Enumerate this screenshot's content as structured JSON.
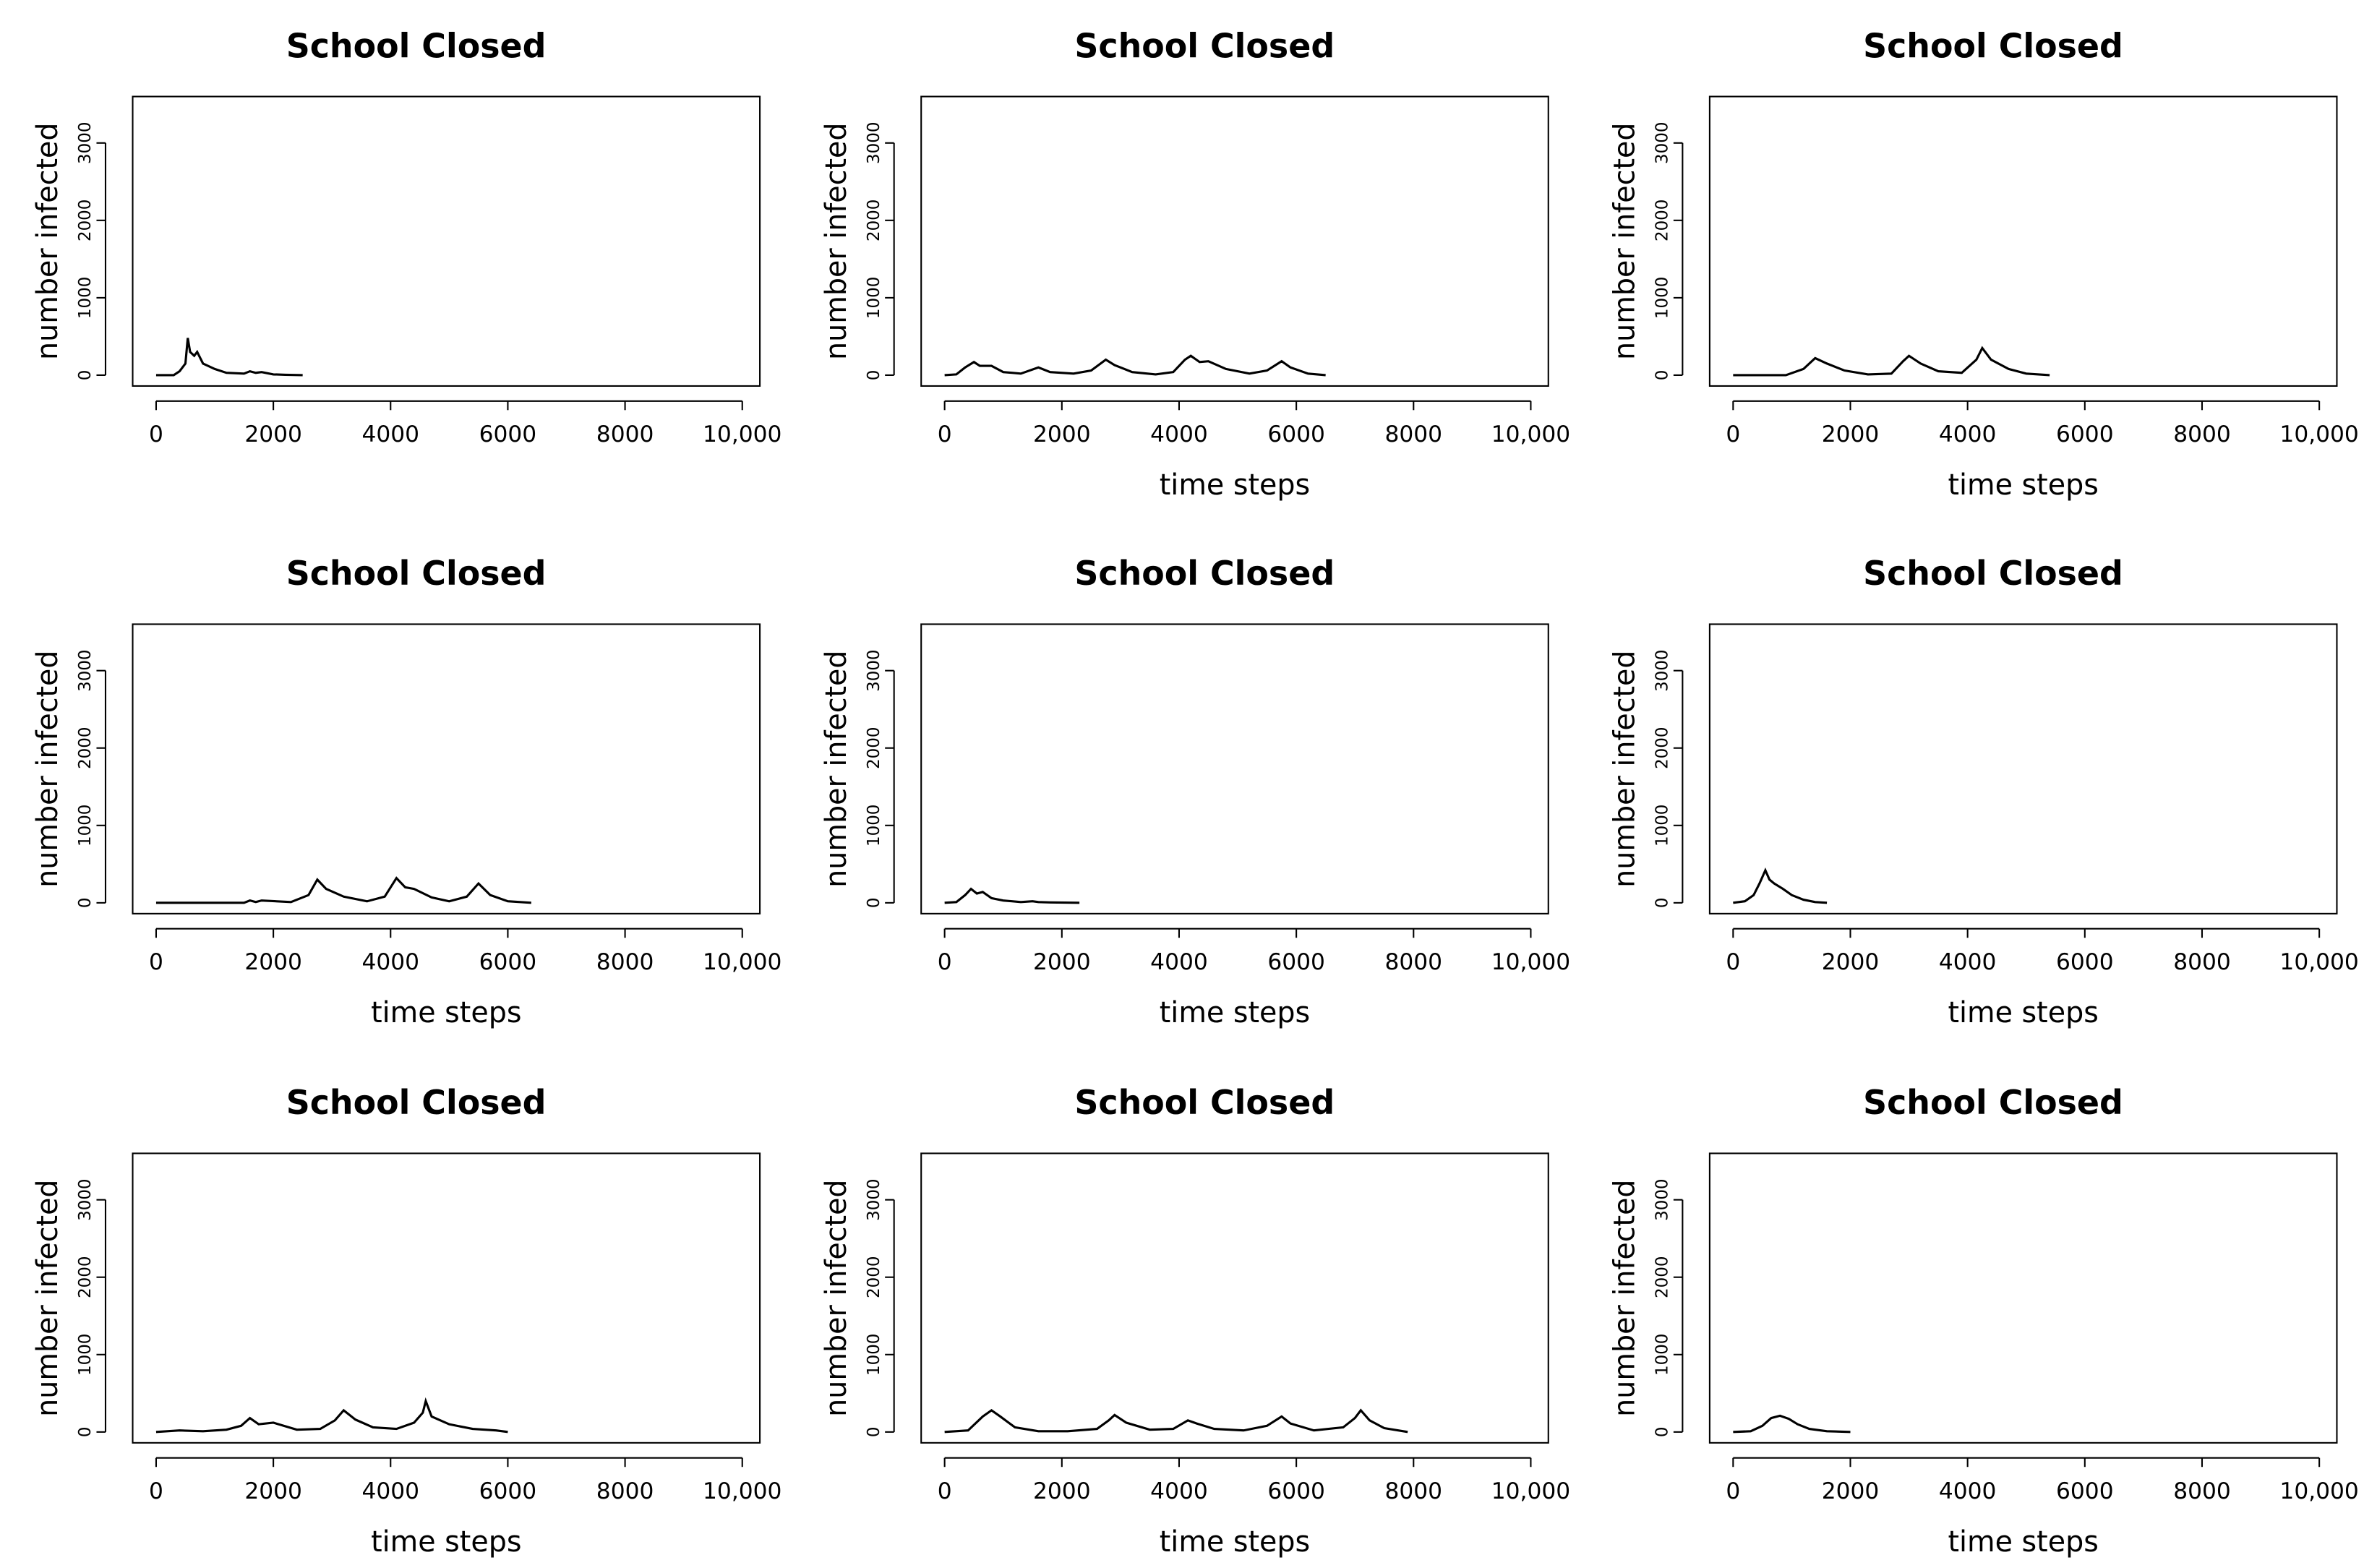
{
  "chart_data": [
    {
      "type": "line",
      "title": "School Closed",
      "y_label": "number infected",
      "xlim": [
        -400,
        10300
      ],
      "ylim": [
        -140,
        3600
      ],
      "xticks": [
        0,
        2000,
        4000,
        6000,
        8000,
        {
          "value": 10000,
          "label": "10,000"
        }
      ],
      "yticks": [
        0,
        1000,
        2000,
        3000
      ],
      "color": "#000000",
      "x": [
        0,
        300,
        400,
        500,
        540,
        580,
        650,
        700,
        800,
        1000,
        1200,
        1500,
        1600,
        1700,
        1800,
        2000,
        2200,
        2500
      ],
      "values": [
        0,
        0,
        50,
        150,
        480,
        300,
        250,
        300,
        150,
        80,
        30,
        20,
        50,
        30,
        40,
        10,
        5,
        0
      ]
    },
    {
      "type": "line",
      "title": "School Closed",
      "x_label": "time steps",
      "y_label": "number infected",
      "xlim": [
        -400,
        10300
      ],
      "ylim": [
        -140,
        3600
      ],
      "xticks": [
        0,
        2000,
        4000,
        6000,
        8000,
        {
          "value": 10000,
          "label": "10,000"
        }
      ],
      "yticks": [
        0,
        1000,
        2000,
        3000
      ],
      "color": "#000000",
      "x": [
        0,
        200,
        350,
        500,
        600,
        800,
        1000,
        1300,
        1600,
        1800,
        2200,
        2500,
        2750,
        2900,
        3200,
        3600,
        3900,
        4100,
        4200,
        4350,
        4500,
        4800,
        5200,
        5500,
        5750,
        5900,
        6200,
        6500
      ],
      "values": [
        0,
        10,
        100,
        170,
        120,
        120,
        40,
        20,
        100,
        40,
        20,
        60,
        200,
        130,
        40,
        10,
        40,
        200,
        250,
        170,
        180,
        80,
        20,
        60,
        180,
        100,
        20,
        0
      ]
    },
    {
      "type": "line",
      "title": "School Closed",
      "x_label": "time steps",
      "y_label": "number infected",
      "xlim": [
        -400,
        10300
      ],
      "ylim": [
        -140,
        3600
      ],
      "xticks": [
        0,
        2000,
        4000,
        6000,
        8000,
        {
          "value": 10000,
          "label": "10,000"
        }
      ],
      "yticks": [
        0,
        1000,
        2000,
        3000
      ],
      "color": "#000000",
      "x": [
        0,
        900,
        1200,
        1400,
        1600,
        1900,
        2300,
        2700,
        2900,
        3000,
        3200,
        3500,
        3900,
        4150,
        4250,
        4400,
        4700,
        5000,
        5400
      ],
      "values": [
        0,
        0,
        80,
        220,
        150,
        60,
        10,
        20,
        180,
        250,
        150,
        50,
        30,
        200,
        350,
        200,
        80,
        20,
        0
      ]
    },
    {
      "type": "line",
      "title": "School Closed",
      "x_label": "time steps",
      "y_label": "number infected",
      "xlim": [
        -400,
        10300
      ],
      "ylim": [
        -140,
        3600
      ],
      "xticks": [
        0,
        2000,
        4000,
        6000,
        8000,
        {
          "value": 10000,
          "label": "10,000"
        }
      ],
      "yticks": [
        0,
        1000,
        2000,
        3000
      ],
      "color": "#000000",
      "x": [
        0,
        1500,
        1600,
        1700,
        1800,
        2300,
        2600,
        2750,
        2900,
        3200,
        3600,
        3900,
        4100,
        4250,
        4400,
        4700,
        5000,
        5300,
        5500,
        5700,
        6000,
        6400
      ],
      "values": [
        0,
        0,
        30,
        10,
        30,
        10,
        100,
        300,
        180,
        80,
        20,
        80,
        320,
        200,
        180,
        70,
        20,
        80,
        250,
        100,
        20,
        0
      ]
    },
    {
      "type": "line",
      "title": "School Closed",
      "x_label": "time steps",
      "y_label": "number infected",
      "xlim": [
        -400,
        10300
      ],
      "ylim": [
        -140,
        3600
      ],
      "xticks": [
        0,
        2000,
        4000,
        6000,
        8000,
        {
          "value": 10000,
          "label": "10,000"
        }
      ],
      "yticks": [
        0,
        1000,
        2000,
        3000
      ],
      "color": "#000000",
      "x": [
        0,
        200,
        350,
        450,
        550,
        650,
        800,
        1000,
        1300,
        1500,
        1600,
        1800,
        2300
      ],
      "values": [
        0,
        10,
        100,
        180,
        120,
        140,
        60,
        30,
        10,
        20,
        10,
        5,
        0
      ]
    },
    {
      "type": "line",
      "title": "School Closed",
      "x_label": "time steps",
      "y_label": "number infected",
      "xlim": [
        -400,
        10300
      ],
      "ylim": [
        -140,
        3600
      ],
      "xticks": [
        0,
        2000,
        4000,
        6000,
        8000,
        {
          "value": 10000,
          "label": "10,000"
        }
      ],
      "yticks": [
        0,
        1000,
        2000,
        3000
      ],
      "color": "#000000",
      "x": [
        0,
        200,
        350,
        450,
        550,
        620,
        700,
        850,
        1000,
        1200,
        1400,
        1600
      ],
      "values": [
        0,
        20,
        100,
        250,
        420,
        300,
        250,
        180,
        100,
        40,
        10,
        0
      ]
    },
    {
      "type": "line",
      "title": "School Closed",
      "x_label": "time steps",
      "y_label": "number infected",
      "xlim": [
        -400,
        10300
      ],
      "ylim": [
        -140,
        3600
      ],
      "xticks": [
        0,
        2000,
        4000,
        6000,
        8000,
        {
          "value": 10000,
          "label": "10,000"
        }
      ],
      "yticks": [
        0,
        1000,
        2000,
        3000
      ],
      "color": "#000000",
      "x": [
        0,
        400,
        800,
        1200,
        1450,
        1600,
        1750,
        2000,
        2400,
        2800,
        3050,
        3200,
        3400,
        3700,
        4100,
        4400,
        4550,
        4600,
        4700,
        5000,
        5400,
        5800,
        6000
      ],
      "values": [
        0,
        20,
        10,
        30,
        80,
        180,
        100,
        120,
        30,
        40,
        150,
        280,
        160,
        60,
        40,
        120,
        250,
        400,
        200,
        100,
        40,
        20,
        0
      ]
    },
    {
      "type": "line",
      "title": "School Closed",
      "x_label": "time steps",
      "y_label": "number infected",
      "xlim": [
        -400,
        10300
      ],
      "ylim": [
        -140,
        3600
      ],
      "xticks": [
        0,
        2000,
        4000,
        6000,
        8000,
        {
          "value": 10000,
          "label": "10,000"
        }
      ],
      "yticks": [
        0,
        1000,
        2000,
        3000
      ],
      "color": "#000000",
      "x": [
        0,
        400,
        650,
        800,
        950,
        1200,
        1600,
        2100,
        2600,
        2800,
        2900,
        3100,
        3500,
        3900,
        4150,
        4300,
        4600,
        5100,
        5500,
        5750,
        5900,
        6300,
        6800,
        7000,
        7100,
        7250,
        7500,
        7900
      ],
      "values": [
        0,
        20,
        200,
        280,
        200,
        60,
        10,
        10,
        40,
        150,
        220,
        120,
        30,
        40,
        150,
        110,
        40,
        20,
        80,
        200,
        110,
        20,
        60,
        180,
        280,
        150,
        50,
        0
      ]
    },
    {
      "type": "line",
      "title": "School Closed",
      "x_label": "time steps",
      "y_label": "number infected",
      "xlim": [
        -400,
        10300
      ],
      "ylim": [
        -140,
        3600
      ],
      "xticks": [
        0,
        2000,
        4000,
        6000,
        8000,
        {
          "value": 10000,
          "label": "10,000"
        }
      ],
      "yticks": [
        0,
        1000,
        2000,
        3000
      ],
      "color": "#000000",
      "x": [
        0,
        300,
        500,
        650,
        800,
        950,
        1100,
        1300,
        1600,
        2000
      ],
      "values": [
        0,
        10,
        80,
        180,
        210,
        170,
        100,
        40,
        10,
        0
      ]
    }
  ]
}
